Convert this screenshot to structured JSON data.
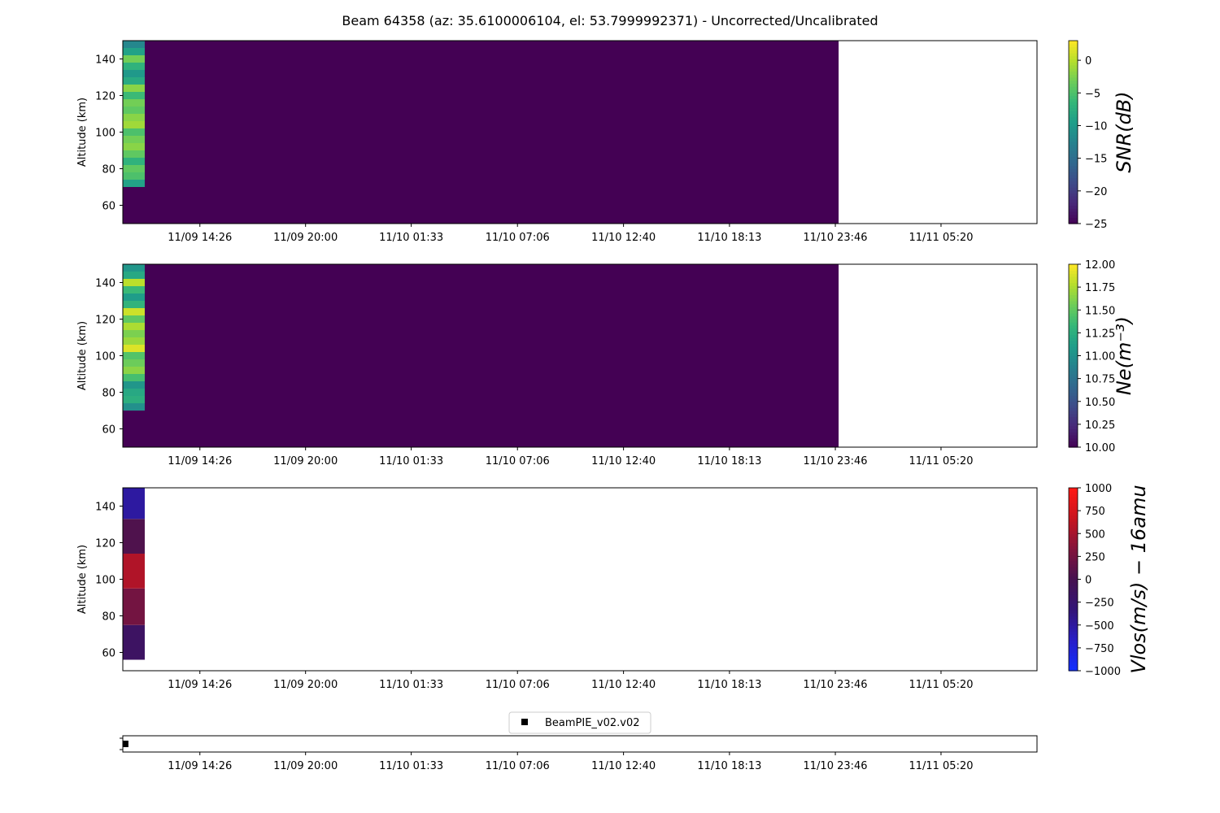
{
  "title": "Beam 64358 (az: 35.6100006104, el: 53.7999992371) - Uncorrected/Uncalibrated",
  "x_tick_labels": [
    "11/09 14:26",
    "11/09 20:00",
    "11/10 01:33",
    "11/10 07:06",
    "11/10 12:40",
    "11/10 18:13",
    "11/10 23:46",
    "11/11 05:20"
  ],
  "chart_data": [
    {
      "type": "heatmap",
      "panel": "snr",
      "ylabel": "Altitude (km)",
      "ylim": [
        50,
        150
      ],
      "yticks": [
        60,
        80,
        100,
        120,
        140
      ],
      "xticks": [
        "11/09 14:26",
        "11/09 20:00",
        "11/10 01:33",
        "11/10 07:06",
        "11/10 12:40",
        "11/10 18:13",
        "11/10 23:46",
        "11/11 05:20"
      ],
      "colormap": "viridis",
      "colorbar": {
        "label": "SNR(dB)",
        "min": -25,
        "max": 3,
        "ticks": [
          0,
          -5,
          -10,
          -15,
          -20,
          -25
        ]
      },
      "background_value": -25,
      "data_extent_fraction": 0.783,
      "first_column_fraction": 0.024,
      "first_column_profile": {
        "altitude": [
          72,
          76,
          80,
          84,
          88,
          92,
          96,
          100,
          104,
          108,
          112,
          116,
          120,
          124,
          128,
          132,
          136,
          140,
          144,
          148
        ],
        "values": [
          -9,
          -5,
          -4,
          -7,
          -4,
          -2,
          -3,
          -5,
          -1,
          -2,
          -4,
          -3,
          -6,
          -2,
          -8,
          -10,
          -7,
          -3,
          -9,
          -12
        ]
      }
    },
    {
      "type": "heatmap",
      "panel": "ne",
      "ylabel": "Altitude (km)",
      "ylim": [
        50,
        150
      ],
      "yticks": [
        60,
        80,
        100,
        120,
        140
      ],
      "xticks": [
        "11/09 14:26",
        "11/09 20:00",
        "11/10 01:33",
        "11/10 07:06",
        "11/10 12:40",
        "11/10 18:13",
        "11/10 23:46",
        "11/11 05:20"
      ],
      "colormap": "viridis",
      "colorbar": {
        "label": "Ne(m⁻³)",
        "min": 10.0,
        "max": 12.0,
        "ticks": [
          "12.00",
          "11.75",
          "11.50",
          "11.25",
          "11.00",
          "10.75",
          "10.50",
          "10.25",
          "10.00"
        ]
      },
      "background_value": 10.0,
      "data_extent_fraction": 0.783,
      "first_column_fraction": 0.024,
      "first_column_profile": {
        "altitude": [
          72,
          76,
          80,
          84,
          88,
          92,
          96,
          100,
          104,
          108,
          112,
          116,
          120,
          124,
          128,
          132,
          136,
          140,
          144,
          148
        ],
        "values": [
          11.0,
          11.25,
          11.2,
          11.05,
          11.4,
          11.65,
          11.55,
          11.45,
          11.9,
          11.7,
          11.6,
          11.75,
          11.5,
          11.85,
          11.3,
          11.1,
          11.35,
          11.8,
          11.2,
          11.05
        ]
      }
    },
    {
      "type": "heatmap",
      "panel": "vlos",
      "ylabel": "Altitude (km)",
      "ylim": [
        50,
        150
      ],
      "yticks": [
        60,
        80,
        100,
        120,
        140
      ],
      "xticks": [
        "11/09 14:26",
        "11/09 20:00",
        "11/10 01:33",
        "11/10 07:06",
        "11/10 12:40",
        "11/10 18:13",
        "11/10 23:46",
        "11/11 05:20"
      ],
      "colormap": "bwr-dark",
      "colorbar": {
        "label": "Vlos(m/s) − 16amu",
        "min": -1000,
        "max": 1000,
        "ticks": [
          1000,
          750,
          500,
          250,
          0,
          -250,
          -500,
          -750,
          -1000
        ]
      },
      "first_column_fraction": 0.024,
      "first_column_profile": {
        "altitude_bins": [
          [
            56,
            75
          ],
          [
            75,
            95
          ],
          [
            95,
            114
          ],
          [
            114,
            133
          ],
          [
            133,
            150
          ]
        ],
        "values": [
          -150,
          250,
          550,
          50,
          -500
        ]
      }
    },
    {
      "type": "scatter",
      "panel": "beams",
      "legend": "BeamPIE_v02.v02",
      "legend_position": "top-center",
      "marker": "square",
      "marker_color": "#000000",
      "xticks": [
        "11/09 14:26",
        "11/09 20:00",
        "11/10 01:33",
        "11/10 07:06",
        "11/10 12:40",
        "11/10 18:13",
        "11/10 23:46",
        "11/11 05:20"
      ],
      "points": [
        {
          "x_fraction": 0.003,
          "y": 0
        }
      ]
    }
  ]
}
